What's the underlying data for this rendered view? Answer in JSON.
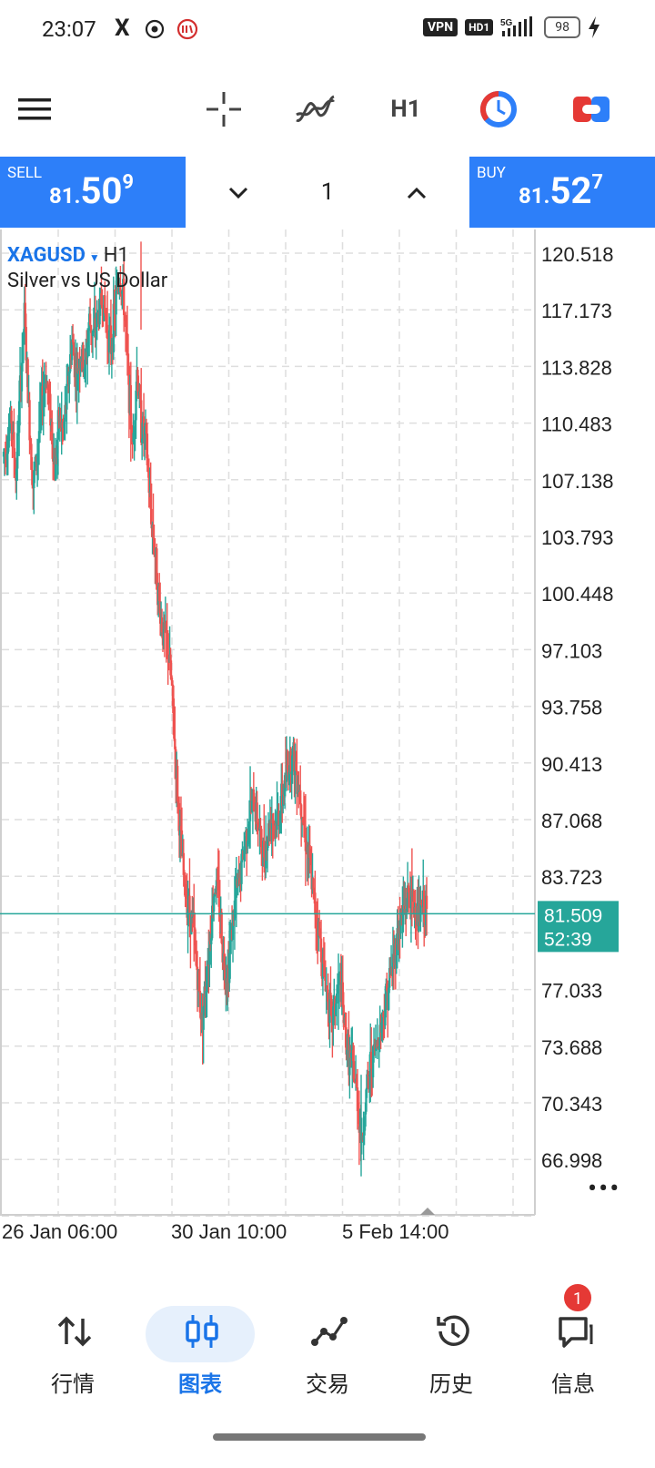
{
  "status_bar": {
    "time": "23:07",
    "x_icon": "X",
    "vpn": "VPN",
    "hd": "HD1",
    "signal_label": "5G",
    "battery": "98"
  },
  "toolbar": {
    "menu_icon": "hamburger-menu-icon",
    "crosshair_icon": "crosshair-icon",
    "indicators_icon": "indicators-icon",
    "timeframe": "H1",
    "clock_icon": "chart-clock-icon",
    "trade_icon": "one-click-trading-icon"
  },
  "trade": {
    "sell_label": "SELL",
    "sell_small": "81.",
    "sell_big": "50",
    "sell_sup": "9",
    "buy_label": "BUY",
    "buy_small": "81.",
    "buy_big": "52",
    "buy_sup": "7",
    "lot": "1"
  },
  "chart": {
    "symbol": "XAGUSD",
    "timeframe": "H1",
    "description": "Silver vs US Dollar",
    "price_label": "81.509",
    "countdown": "52:39",
    "more": "•••"
  },
  "chart_data": {
    "type": "candlestick",
    "title": "XAGUSD H1",
    "subtitle": "Silver vs US Dollar",
    "y_ticks": [
      120.518,
      117.173,
      113.828,
      110.483,
      107.138,
      103.793,
      100.448,
      97.103,
      93.758,
      90.413,
      87.068,
      83.723,
      77.033,
      73.688,
      70.343,
      66.998
    ],
    "x_tick_labels": [
      "26 Jan 06:00",
      "30 Jan 10:00",
      "5 Feb 14:00"
    ],
    "ylim": [
      65.5,
      121.5
    ],
    "current_price": 81.509,
    "grid": true,
    "up_color": "#26a69a",
    "down_color": "#ef5350",
    "path": [
      108.5,
      109.4,
      110.8,
      107.2,
      112.4,
      116.9,
      111.2,
      106.8,
      108.9,
      111.7,
      113.3,
      111.1,
      107.6,
      110.8,
      109.9,
      112.6,
      115.4,
      113.1,
      114.6,
      113.7,
      116.5,
      115.7,
      116.8,
      117.9,
      116.2,
      115.0,
      117.3,
      119.2,
      117.6,
      113.2,
      108.9,
      113.6,
      110.4,
      109.7,
      105.9,
      103.4,
      100.2,
      98.1,
      97.6,
      95.0,
      90.3,
      86.1,
      83.1,
      81.9,
      80.7,
      77.9,
      75.2,
      77.5,
      80.4,
      83.3,
      82.5,
      78.8,
      78.0,
      80.7,
      82.7,
      84.0,
      85.8,
      87.3,
      88.1,
      87.0,
      84.9,
      85.8,
      87.4,
      86.8,
      87.5,
      88.9,
      90.2,
      91.0,
      89.8,
      88.2,
      86.0,
      84.3,
      82.1,
      80.6,
      78.4,
      76.9,
      75.2,
      76.3,
      77.6,
      74.7,
      73.1,
      72.3,
      70.6,
      67.8,
      70.8,
      72.6,
      73.4,
      74.5,
      75.6,
      77.1,
      78.3,
      79.8,
      81.2,
      81.9,
      82.8,
      82.0,
      81.2,
      81.9,
      81.5
    ]
  },
  "bottom_nav": {
    "items": [
      {
        "label": "行情",
        "icon": "quotes-arrows-icon"
      },
      {
        "label": "图表",
        "icon": "candlestick-chart-icon"
      },
      {
        "label": "交易",
        "icon": "trade-line-icon"
      },
      {
        "label": "历史",
        "icon": "history-clock-icon"
      },
      {
        "label": "信息",
        "icon": "messages-chat-icon"
      }
    ],
    "badge": "1"
  },
  "colors": {
    "accent": "#2d7ff9",
    "active_tab": "#1a74e8",
    "price_tag": "#26a69a"
  }
}
